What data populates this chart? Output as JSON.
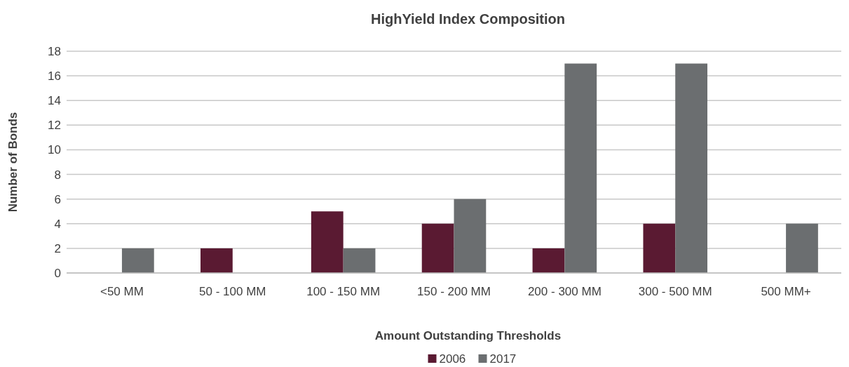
{
  "chart_data": {
    "type": "bar",
    "title": "HighYield Index Composition",
    "xlabel": "Amount Outstanding Thresholds",
    "ylabel": "Number of Bonds",
    "categories": [
      "<50 MM",
      "50 - 100 MM",
      "100 - 150 MM",
      "150 - 200 MM",
      "200 - 300 MM",
      "300 - 500 MM",
      "500 MM+"
    ],
    "series": [
      {
        "name": "2006",
        "color": "#5a1a32",
        "values": [
          0,
          2,
          5,
          4,
          2,
          4,
          0
        ]
      },
      {
        "name": "2017",
        "color": "#6b6e70",
        "values": [
          2,
          0,
          2,
          6,
          17,
          17,
          4
        ]
      }
    ],
    "ylim": [
      0,
      18
    ],
    "yticks": [
      0,
      2,
      4,
      6,
      8,
      10,
      12,
      14,
      16,
      18
    ],
    "grid": "y",
    "legend": "bottom"
  }
}
